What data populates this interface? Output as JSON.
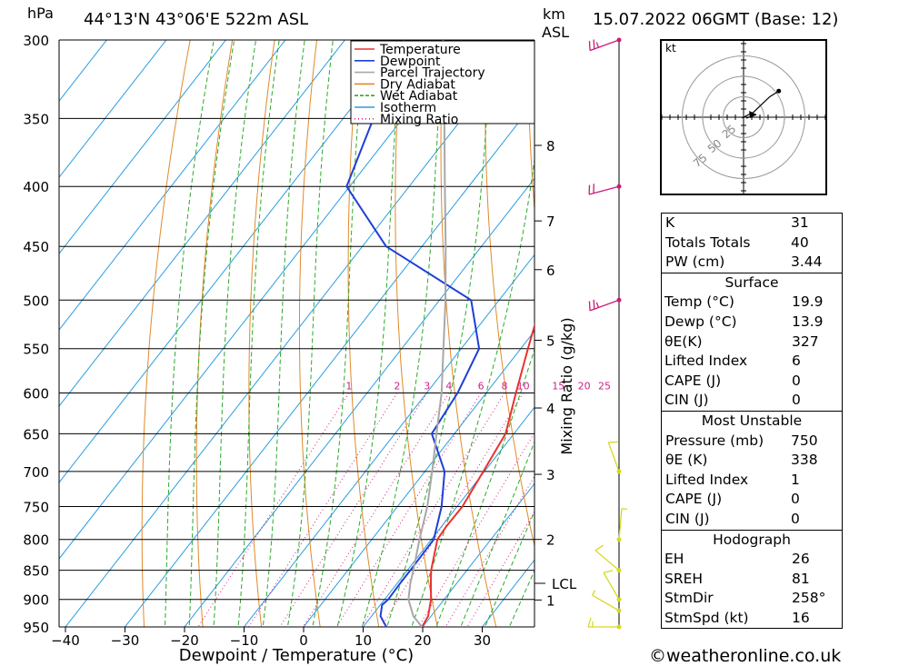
{
  "header": {
    "pressure_unit": "hPa",
    "location": "44°13'N 43°06'E 522m ASL",
    "km_label": "km",
    "asl_label": "ASL",
    "datetime": "15.07.2022 06GMT (Base: 12)"
  },
  "legend": [
    "Temperature",
    "Dewpoint",
    "Parcel Trajectory",
    "Dry Adiabat",
    "Wet Adiabat",
    "Isotherm",
    "Mixing Ratio"
  ],
  "colors": {
    "temperature": "#e8322f",
    "dewpoint": "#1f3fd6",
    "parcel": "#a8a8a8",
    "dry_adiabat": "#e08a2a",
    "wet_adiabat": "#2aaa2a",
    "isotherm": "#2a9de0",
    "mixing_ratio": "#d0208a",
    "wind_upper": "#cc1a7a",
    "wind_lower": "#d8d820"
  },
  "chart_data": {
    "type": "line",
    "chart_kind": "skew-T log-P",
    "xlabel": "Dewpoint / Temperature (°C)",
    "ylabel_left": "hPa",
    "ylabel_right": "Mixing Ratio (g/kg)",
    "pressure_levels": [
      300,
      350,
      400,
      450,
      500,
      550,
      600,
      650,
      700,
      750,
      800,
      850,
      900,
      950
    ],
    "temperature_ticks": [
      -40,
      -30,
      -20,
      -10,
      0,
      10,
      20,
      30
    ],
    "height_ticks_km": [
      1,
      2,
      3,
      4,
      5,
      6,
      7,
      8
    ],
    "height_tick_pressures": [
      901,
      800,
      704,
      618,
      541,
      471,
      428,
      369
    ],
    "lcl_label": "LCL",
    "lcl_pressure": 872,
    "mixing_ratio_labels": [
      "1",
      "2",
      "3",
      "4",
      "6",
      "8",
      "10",
      "15",
      "20",
      "25"
    ],
    "mixing_ratio_values": [
      1,
      2,
      3,
      4,
      6,
      8,
      10,
      15,
      20,
      25
    ],
    "mixing_ratio_label_pressure": 600,
    "series": [
      {
        "name": "Temperature",
        "p": [
          950,
          930,
          900,
          870,
          850,
          800,
          780,
          750,
          700,
          650,
          600,
          550,
          500,
          450,
          400,
          360
        ],
        "t": [
          19.9,
          19.5,
          17.8,
          15.5,
          14.0,
          11.0,
          10.8,
          10.9,
          9.8,
          8.6,
          5.0,
          1.2,
          -2.8,
          -6.8,
          -10.4,
          -15.0
        ]
      },
      {
        "name": "Dewpoint",
        "p": [
          950,
          930,
          910,
          900,
          870,
          850,
          800,
          750,
          700,
          650,
          600,
          550,
          500,
          450,
          400,
          300
        ],
        "t": [
          13.9,
          11.5,
          10.3,
          10.6,
          10.5,
          10.5,
          10.4,
          7.4,
          3.3,
          -3.8,
          -4.8,
          -7.0,
          -14.7,
          -36.0,
          -50.5,
          -60.0
        ]
      },
      {
        "name": "Parcel Trajectory",
        "p": [
          950,
          930,
          900,
          872,
          850,
          800,
          750,
          700,
          650,
          600,
          550,
          500,
          450,
          400,
          350,
          300
        ],
        "t": [
          19.9,
          17.0,
          14.0,
          12.2,
          11.0,
          8.0,
          5.0,
          1.2,
          -3.0,
          -7.5,
          -13.0,
          -19.0,
          -26.0,
          -34.0,
          -43.0,
          -53.5
        ]
      }
    ],
    "wind_barbs": [
      {
        "p": 300,
        "dir": 250,
        "kt": 25
      },
      {
        "p": 400,
        "dir": 255,
        "kt": 20
      },
      {
        "p": 500,
        "dir": 250,
        "kt": 25
      },
      {
        "p": 700,
        "dir": 340,
        "kt": 10
      },
      {
        "p": 800,
        "dir": 5,
        "kt": 5
      },
      {
        "p": 850,
        "dir": 310,
        "kt": 10
      },
      {
        "p": 900,
        "dir": 330,
        "kt": 10
      },
      {
        "p": 920,
        "dir": 300,
        "kt": 5
      },
      {
        "p": 950,
        "dir": 270,
        "kt": 15
      }
    ]
  },
  "hodograph": {
    "unit": "kt",
    "rings": [
      "25",
      "50",
      "75"
    ],
    "path": [
      [
        -2,
        -1
      ],
      [
        0,
        0
      ],
      [
        12,
        6
      ],
      [
        32,
        25
      ],
      [
        43,
        32
      ]
    ],
    "storm_motion": {
      "dir_deg": 258,
      "speed_kt": 16
    }
  },
  "indices": [
    {
      "label": "K",
      "value": "31"
    },
    {
      "label": "Totals Totals",
      "value": "40"
    },
    {
      "label": "PW (cm)",
      "value": "3.44"
    }
  ],
  "surface": {
    "title": "Surface",
    "rows": [
      {
        "label": "Temp (°C)",
        "value": "19.9"
      },
      {
        "label": "Dewp (°C)",
        "value": "13.9"
      },
      {
        "label": "θE(K)",
        "value": "327"
      },
      {
        "label": "Lifted Index",
        "value": "6"
      },
      {
        "label": "CAPE (J)",
        "value": "0"
      },
      {
        "label": "CIN (J)",
        "value": "0"
      }
    ]
  },
  "most_unstable": {
    "title": "Most Unstable",
    "rows": [
      {
        "label": "Pressure (mb)",
        "value": "750"
      },
      {
        "label": "θE (K)",
        "value": "338"
      },
      {
        "label": "Lifted Index",
        "value": "1"
      },
      {
        "label": "CAPE (J)",
        "value": "0"
      },
      {
        "label": "CIN (J)",
        "value": "0"
      }
    ]
  },
  "hodograph_table": {
    "title": "Hodograph",
    "rows": [
      {
        "label": "EH",
        "value": "26"
      },
      {
        "label": "SREH",
        "value": "81"
      },
      {
        "label": "StmDir",
        "value": "258°"
      },
      {
        "label": "StmSpd (kt)",
        "value": "16"
      }
    ]
  },
  "credit": "©weatheronline.co.uk"
}
